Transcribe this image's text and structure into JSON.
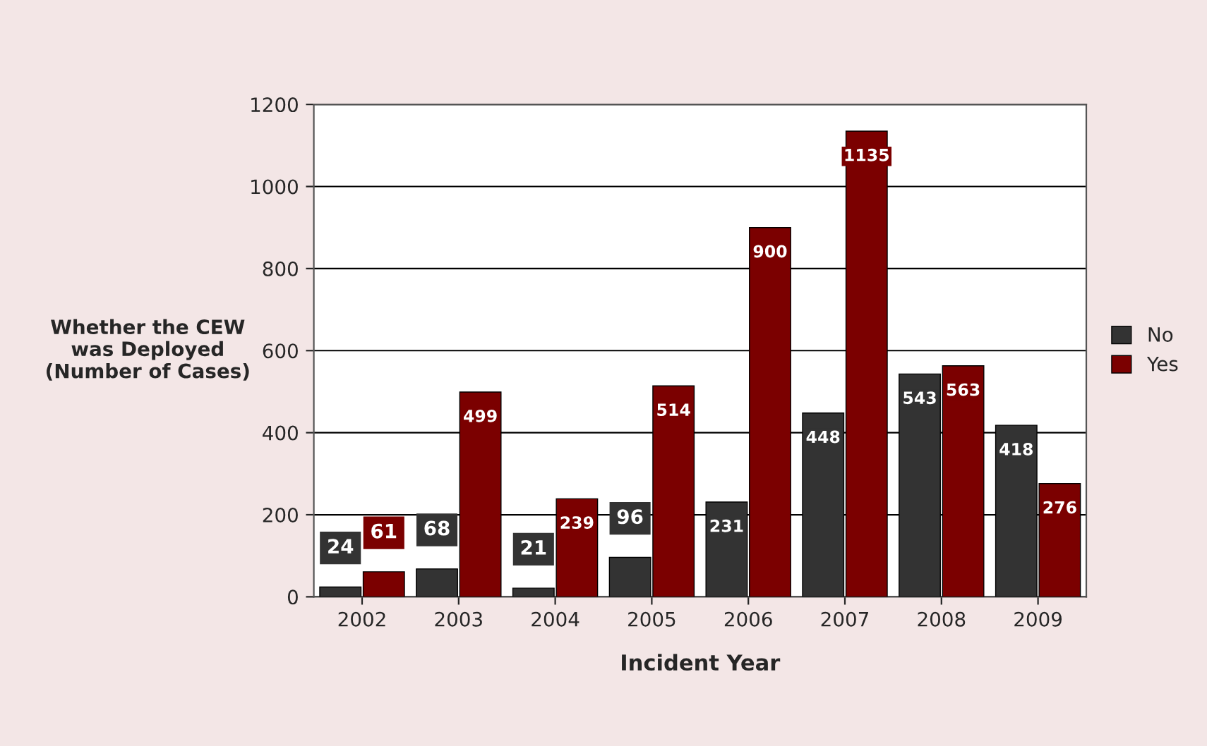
{
  "chart_data": {
    "type": "bar",
    "xlabel": "Incident Year",
    "ylabel": "Whether the CEW\nwas Deployed\n(Number of Cases)",
    "categories": [
      "2002",
      "2003",
      "2004",
      "2005",
      "2006",
      "2007",
      "2008",
      "2009"
    ],
    "series": [
      {
        "name": "No",
        "color": "#333333",
        "values": [
          24,
          68,
          21,
          96,
          231,
          448,
          543,
          418
        ]
      },
      {
        "name": "Yes",
        "color": "#7b0000",
        "values": [
          61,
          499,
          239,
          514,
          900,
          1135,
          563,
          276
        ]
      }
    ],
    "ylim": [
      0,
      1200
    ],
    "yticks": [
      0,
      200,
      400,
      600,
      800,
      1000,
      1200
    ],
    "grid": "y",
    "legend": "right",
    "data_labels": true
  }
}
